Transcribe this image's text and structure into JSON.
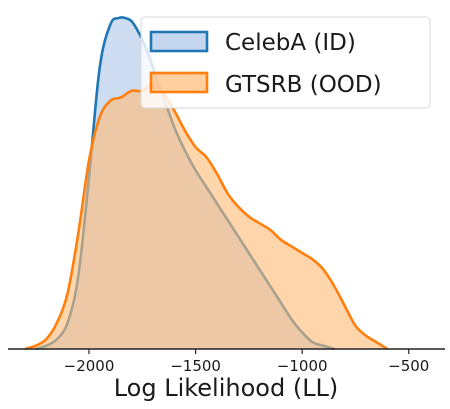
{
  "chart_data": {
    "type": "area",
    "title": "",
    "xlabel": "Log Likelihood (LL)",
    "ylabel": "",
    "xlim": [
      -2380,
      -330
    ],
    "ylim": [
      0,
      1.0
    ],
    "xticks": [
      -2000,
      -1500,
      -1000,
      -500
    ],
    "xtick_labels": [
      "−2000",
      "−1500",
      "−1000",
      "−500"
    ],
    "grid": false,
    "legend": {
      "placement": "top-right"
    },
    "series": [
      {
        "name": "CelebA (ID)",
        "color": "#1f77b4",
        "fill": "#aec7e8",
        "x": [
          -2250,
          -2200,
          -2150,
          -2100,
          -2050,
          -2000,
          -1950,
          -1900,
          -1860,
          -1830,
          -1800,
          -1770,
          -1740,
          -1710,
          -1680,
          -1650,
          -1600,
          -1550,
          -1500,
          -1450,
          -1400,
          -1350,
          -1300,
          -1250,
          -1200,
          -1150,
          -1100,
          -1050,
          -1000,
          -950,
          -900,
          -850
        ],
        "y": [
          0.0,
          0.01,
          0.03,
          0.08,
          0.22,
          0.52,
          0.85,
          0.98,
          1.0,
          1.0,
          0.99,
          0.96,
          0.92,
          0.87,
          0.81,
          0.76,
          0.67,
          0.6,
          0.54,
          0.49,
          0.44,
          0.39,
          0.34,
          0.29,
          0.24,
          0.19,
          0.14,
          0.09,
          0.05,
          0.02,
          0.01,
          0.0
        ]
      },
      {
        "name": "GTSRB (OOD)",
        "color": "#ff7f0e",
        "fill": "#ffbb78",
        "x": [
          -2300,
          -2250,
          -2200,
          -2150,
          -2100,
          -2050,
          -2000,
          -1950,
          -1900,
          -1850,
          -1800,
          -1750,
          -1700,
          -1650,
          -1600,
          -1550,
          -1500,
          -1450,
          -1400,
          -1350,
          -1300,
          -1250,
          -1200,
          -1150,
          -1100,
          -1050,
          -1000,
          -950,
          -900,
          -850,
          -800,
          -750,
          -700,
          -650,
          -600
        ],
        "y": [
          0.0,
          0.01,
          0.03,
          0.08,
          0.17,
          0.35,
          0.57,
          0.7,
          0.75,
          0.76,
          0.78,
          0.78,
          0.8,
          0.77,
          0.72,
          0.66,
          0.61,
          0.58,
          0.53,
          0.47,
          0.43,
          0.4,
          0.38,
          0.36,
          0.33,
          0.31,
          0.29,
          0.27,
          0.24,
          0.19,
          0.13,
          0.07,
          0.04,
          0.02,
          0.0
        ]
      }
    ]
  }
}
